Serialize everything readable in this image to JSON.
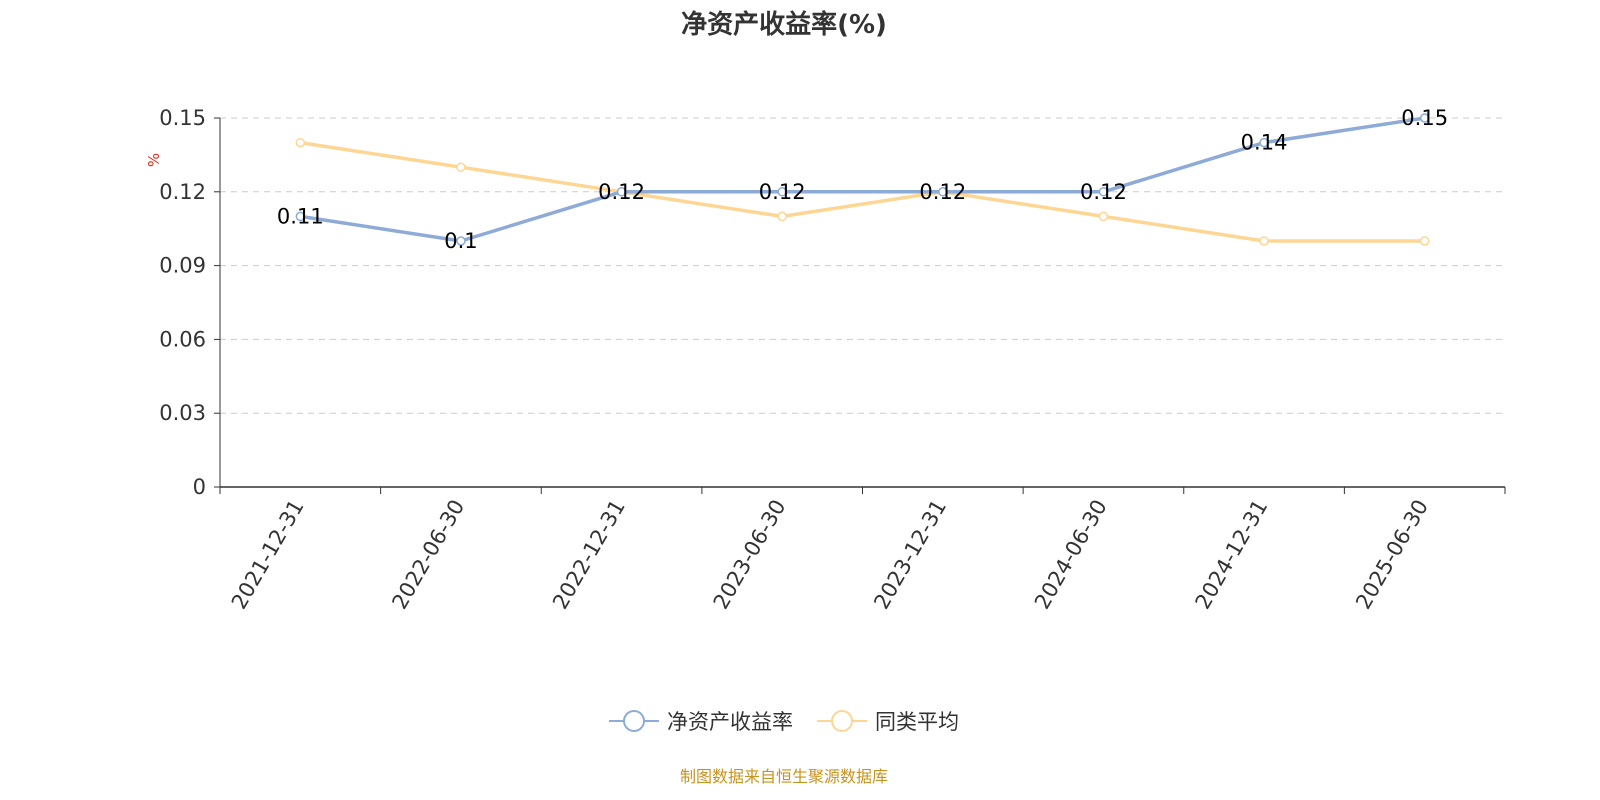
{
  "title": "净资产收益率(%)",
  "source_note": "制图数据来自恒生聚源数据库",
  "colors": {
    "series_main": "#8eaad6",
    "series_avg": "#fdd693",
    "axis_unit": "#e0301e",
    "grid": "#cccccc",
    "text": "#333333",
    "source": "#c8931e"
  },
  "chart_data": {
    "type": "line",
    "title": "净资产收益率(%)",
    "ylabel": "%",
    "xlabel": "",
    "categories": [
      "2021-12-31",
      "2022-06-30",
      "2022-12-31",
      "2023-06-30",
      "2023-12-31",
      "2024-06-30",
      "2024-12-31",
      "2025-06-30"
    ],
    "ylim": [
      0,
      0.15
    ],
    "yticks": [
      "0",
      "0.03",
      "0.06",
      "0.09",
      "0.12",
      "0.15"
    ],
    "grid": true,
    "legend_position": "bottom-center",
    "series": [
      {
        "name": "净资产收益率",
        "values": [
          0.11,
          0.1,
          0.12,
          0.12,
          0.12,
          0.12,
          0.14,
          0.15
        ],
        "data_labels": [
          "0.11",
          "0.1",
          "0.12",
          "0.12",
          "0.12",
          "0.12",
          "0.14",
          "0.15"
        ]
      },
      {
        "name": "同类平均",
        "values": [
          0.14,
          0.13,
          0.12,
          0.11,
          0.12,
          0.11,
          0.1,
          0.1
        ]
      }
    ]
  }
}
